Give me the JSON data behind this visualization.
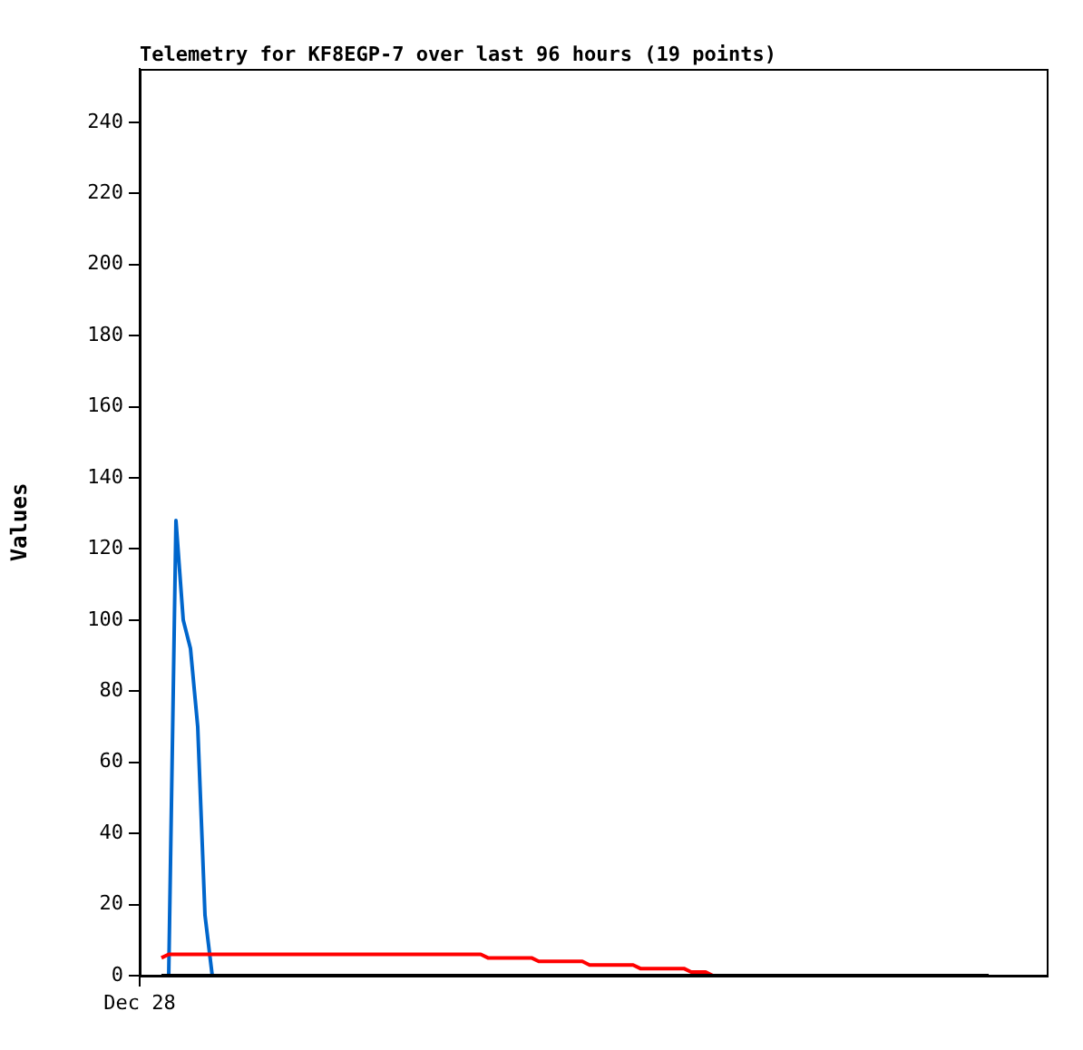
{
  "chart_data": {
    "type": "line",
    "title": "Telemetry for KF8EGP-7 over last 96 hours (19 points)",
    "ylabel": "Values",
    "categories": [
      "Dec 28",
      null,
      null,
      null,
      null,
      null,
      null,
      null,
      null,
      null,
      null,
      null,
      null,
      null,
      null,
      null,
      null,
      null,
      null,
      null,
      null,
      null,
      null,
      null,
      null,
      null,
      null,
      null,
      null,
      null,
      null,
      null,
      null,
      null,
      null,
      null,
      null,
      null,
      null,
      null,
      null,
      null,
      null,
      null,
      null,
      null,
      null,
      null,
      null,
      null,
      null,
      null,
      null,
      null,
      null,
      null,
      null,
      null,
      null,
      null,
      null,
      null,
      null,
      null,
      null,
      null,
      null,
      null,
      null,
      null,
      null,
      null,
      null,
      null,
      null,
      null,
      null,
      null,
      null,
      null,
      null,
      null,
      null,
      null,
      null,
      null,
      null,
      null,
      null,
      null,
      null,
      null,
      null,
      null,
      null,
      null,
      null,
      null,
      null,
      null,
      null,
      null,
      null,
      null,
      null,
      null,
      null,
      null,
      null,
      null,
      null,
      null,
      null,
      null,
      null,
      null,
      null,
      null,
      null,
      null,
      null,
      null,
      null,
      null,
      null,
      null
    ],
    "ylim": [
      0,
      255
    ],
    "yticks": [
      0,
      20,
      40,
      60,
      80,
      100,
      120,
      140,
      160,
      180,
      200,
      220,
      240
    ],
    "grid": false,
    "legend": false,
    "marker": "none",
    "line_style": "solid",
    "series": [
      {
        "color": "#000000",
        "values": [
          null,
          null,
          null,
          0,
          0,
          0,
          0,
          0,
          0,
          0,
          0,
          0,
          0,
          0,
          0,
          0,
          0,
          0,
          0,
          0,
          0,
          0,
          0,
          0,
          0,
          0,
          0,
          0,
          0,
          0,
          0,
          0,
          0,
          0,
          0,
          0,
          0,
          0,
          0,
          0,
          0,
          0,
          0,
          0,
          0,
          0,
          0,
          0,
          0,
          0,
          0,
          0,
          0,
          0,
          0,
          0,
          0,
          0,
          0,
          0,
          0,
          0,
          0,
          0,
          0,
          0,
          0,
          0,
          0,
          0,
          0,
          0,
          0,
          0,
          0,
          0,
          0,
          0,
          0,
          0,
          0,
          0,
          0,
          0,
          0,
          0,
          0,
          0,
          0,
          0,
          0,
          0,
          0,
          0,
          0,
          0,
          0,
          0,
          0,
          0,
          0,
          0,
          0,
          0,
          0,
          0,
          0,
          0,
          0,
          0,
          0,
          0,
          0,
          0,
          0,
          0,
          0,
          0,
          null,
          null,
          null,
          null,
          null,
          null,
          null,
          null
        ]
      },
      {
        "color": "#ff0000",
        "values": [
          null,
          null,
          null,
          5,
          6,
          6,
          6,
          6,
          6,
          6,
          6,
          6,
          6,
          6,
          6,
          6,
          6,
          6,
          6,
          6,
          6,
          6,
          6,
          6,
          6,
          6,
          6,
          6,
          6,
          6,
          6,
          6,
          6,
          6,
          6,
          6,
          6,
          6,
          6,
          6,
          6,
          6,
          6,
          6,
          6,
          6,
          6,
          6,
          5,
          5,
          5,
          5,
          5,
          5,
          5,
          4,
          4,
          4,
          4,
          4,
          4,
          4,
          3,
          3,
          3,
          3,
          3,
          3,
          3,
          2,
          2,
          2,
          2,
          2,
          2,
          2,
          1,
          1,
          1,
          0,
          null,
          null,
          null,
          null,
          null,
          null,
          null,
          null,
          null,
          null,
          null,
          null,
          null,
          null,
          null,
          null,
          null,
          null,
          null,
          null,
          null,
          null,
          null,
          null,
          null,
          null,
          null,
          null,
          null,
          null,
          null,
          null,
          null,
          null,
          null,
          null,
          null,
          null,
          null,
          null,
          null,
          null,
          null,
          null,
          null,
          null
        ]
      },
      {
        "color": "#0066cc",
        "values": [
          null,
          null,
          null,
          null,
          0,
          128,
          100,
          92,
          70,
          17,
          0,
          null,
          null,
          null,
          null,
          null,
          null,
          null,
          null,
          null,
          null,
          null,
          null,
          null,
          null,
          null,
          null,
          null,
          null,
          null,
          null,
          null,
          null,
          null,
          null,
          null,
          null,
          null,
          null,
          null,
          null,
          null,
          null,
          null,
          null,
          null,
          null,
          null,
          null,
          null,
          null,
          null,
          null,
          null,
          null,
          null,
          null,
          null,
          null,
          null,
          null,
          null,
          null,
          null,
          null,
          null,
          null,
          null,
          null,
          null,
          null,
          null,
          null,
          null,
          null,
          null,
          null,
          null,
          null,
          null,
          null,
          null,
          null,
          null,
          null,
          null,
          null,
          null,
          null,
          null,
          null,
          null,
          null,
          null,
          null,
          null,
          null,
          null,
          null,
          null,
          null,
          null,
          null,
          null,
          null,
          null,
          null,
          null,
          null,
          null,
          null,
          null,
          null,
          null,
          null,
          null,
          null,
          null,
          null,
          null,
          null,
          null,
          null,
          null,
          null,
          null
        ]
      }
    ]
  }
}
